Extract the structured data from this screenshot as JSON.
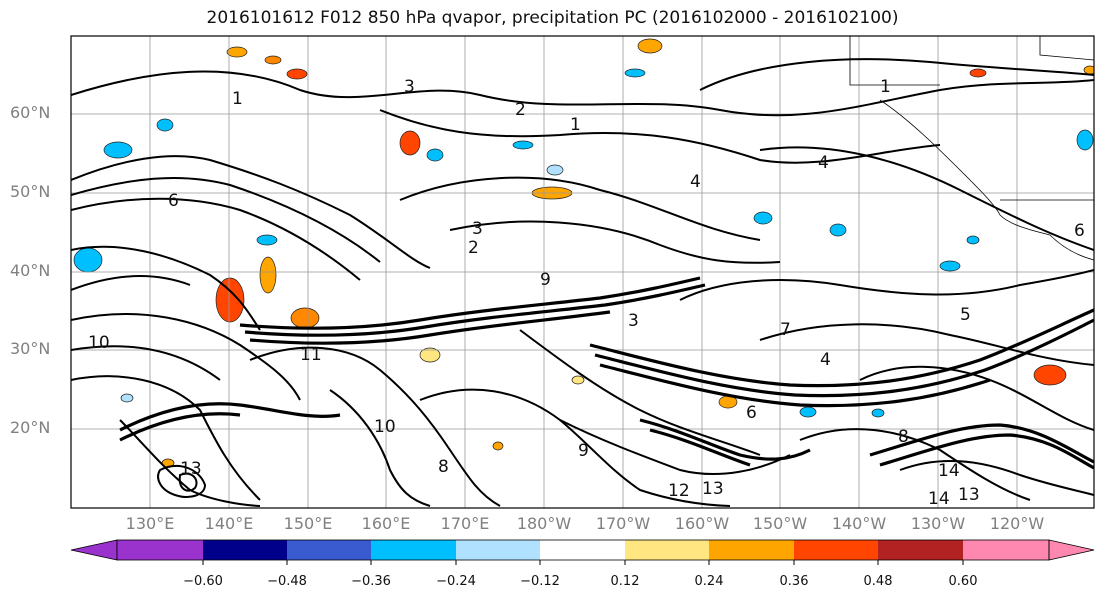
{
  "title": "2016101612 F012 850 hPa qvapor, precipitation PC (2016102000 - 2016102100)",
  "lat_labels": [
    "60°N",
    "50°N",
    "40°N",
    "30°N",
    "20°N"
  ],
  "lon_labels": [
    "130°E",
    "140°E",
    "150°E",
    "160°E",
    "170°E",
    "180°W",
    "170°W",
    "160°W",
    "150°W",
    "140°W",
    "130°W",
    "120°W"
  ],
  "colorbar": {
    "colors": [
      "#9a32cd",
      "#00008b",
      "#3a5bd0",
      "#00bfff",
      "#b0e2ff",
      "#ffffff",
      "#ffe680",
      "#ffa500",
      "#ff4500",
      "#b22222",
      "#ff88b0"
    ],
    "tick_labels": [
      "−0.60",
      "−0.48",
      "−0.36",
      "−0.24",
      "−0.12",
      "0.12",
      "0.24",
      "0.36",
      "0.48",
      "0.60"
    ]
  },
  "contour_labels": [
    "1",
    "1",
    "1",
    "2",
    "2",
    "3",
    "3",
    "3",
    "4",
    "4",
    "4",
    "5",
    "6",
    "6",
    "6",
    "7",
    "8",
    "8",
    "9",
    "9",
    "10",
    "10",
    "11",
    "12",
    "13",
    "13",
    "13",
    "14",
    "14"
  ]
}
